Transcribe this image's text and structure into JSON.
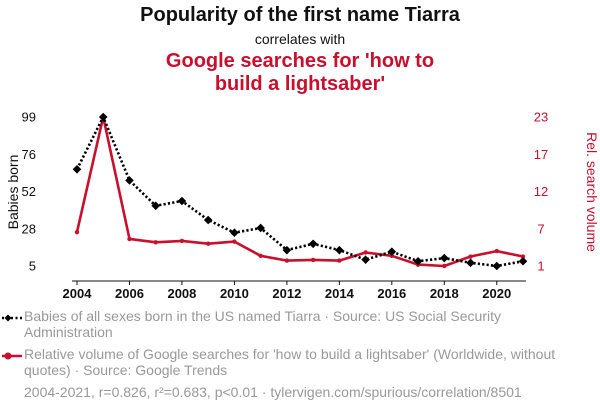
{
  "chart_data": {
    "type": "line",
    "title": "Popularity of the first name Tiarra",
    "subtitle": "correlates with",
    "title2": "Google searches for 'how to build a lightsaber'",
    "x": [
      2004,
      2005,
      2006,
      2007,
      2008,
      2009,
      2010,
      2011,
      2012,
      2013,
      2014,
      2015,
      2016,
      2017,
      2018,
      2019,
      2020,
      2021
    ],
    "xticks": [
      "2004",
      "2006",
      "2008",
      "2010",
      "2012",
      "2014",
      "2016",
      "2018",
      "2020"
    ],
    "left_axis": {
      "label": "Babies born",
      "ticks": [
        "99",
        "76",
        "52",
        "28",
        "5"
      ],
      "range": [
        5,
        99
      ]
    },
    "right_axis": {
      "label": "Rel. search volume",
      "ticks": [
        "23",
        "17",
        "12",
        "7",
        "1"
      ],
      "range": [
        1,
        23
      ]
    },
    "series": [
      {
        "name": "Babies of all sexes born in the US named Tiarra",
        "axis": "left",
        "color": "#000000",
        "style": "dotted",
        "marker": "diamond",
        "values": [
          66,
          99,
          59,
          43,
          46,
          34,
          26,
          29,
          15,
          19,
          15,
          9,
          14,
          8,
          10,
          7,
          5,
          8
        ]
      },
      {
        "name": "Relative volume of Google searches for 'how to build a lightsaber'",
        "axis": "right",
        "color": "#c8102e",
        "style": "solid",
        "marker": "circle",
        "values": [
          6,
          23,
          5,
          4.5,
          4.7,
          4.3,
          4.6,
          2.5,
          1.8,
          1.9,
          1.8,
          3,
          2.5,
          1.2,
          1,
          2.4,
          3.2,
          2.4
        ]
      }
    ]
  },
  "legend": {
    "item1": "Babies of all sexes born in the US named Tiarra · Source: US Social Security Administration",
    "item2": "Relative volume of Google searches for 'how to build a lightsaber' (Worldwide, without quotes) · Source: Google Trends"
  },
  "footer": "2004-2021, r=0.826, r²=0.683, p<0.01 · tylervigen.com/spurious/correlation/8501"
}
